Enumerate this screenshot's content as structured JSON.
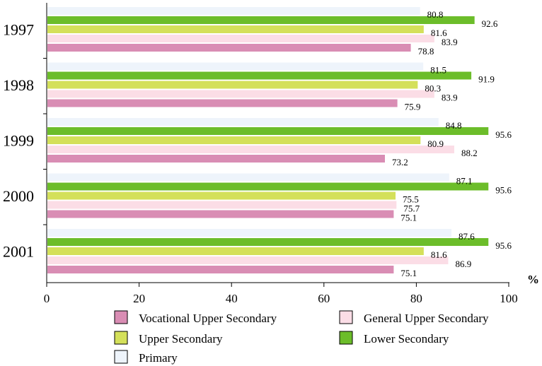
{
  "chart_data": {
    "type": "bar",
    "orientation": "horizontal",
    "categories": [
      "1997",
      "1998",
      "1999",
      "2000",
      "2001"
    ],
    "series": [
      {
        "name": "Primary",
        "color": "#eef4fb",
        "values": [
          80.8,
          81.5,
          84.8,
          87.1,
          87.6
        ]
      },
      {
        "name": "Lower Secondary",
        "color": "#6cbd2a",
        "values": [
          92.6,
          91.9,
          95.6,
          95.6,
          95.6
        ]
      },
      {
        "name": "Upper Secondary",
        "color": "#d4e05a",
        "values": [
          81.6,
          80.3,
          80.9,
          75.5,
          81.6
        ]
      },
      {
        "name": "General Upper Secondary",
        "color": "#fbdde6",
        "values": [
          83.9,
          83.9,
          88.2,
          75.7,
          86.9
        ]
      },
      {
        "name": "Vocational Upper Secondary",
        "color": "#d98db4",
        "values": [
          78.8,
          75.9,
          73.2,
          75.1,
          75.1
        ]
      }
    ],
    "xlim": [
      0,
      100
    ],
    "xticks": [
      "0",
      "20",
      "40",
      "60",
      "80",
      "100"
    ],
    "x_unit": "%",
    "legend_order": [
      "Vocational Upper Secondary",
      "General Upper Secondary",
      "Upper Secondary",
      "Lower Secondary",
      "Primary"
    ],
    "legend_placement": "bottom"
  }
}
